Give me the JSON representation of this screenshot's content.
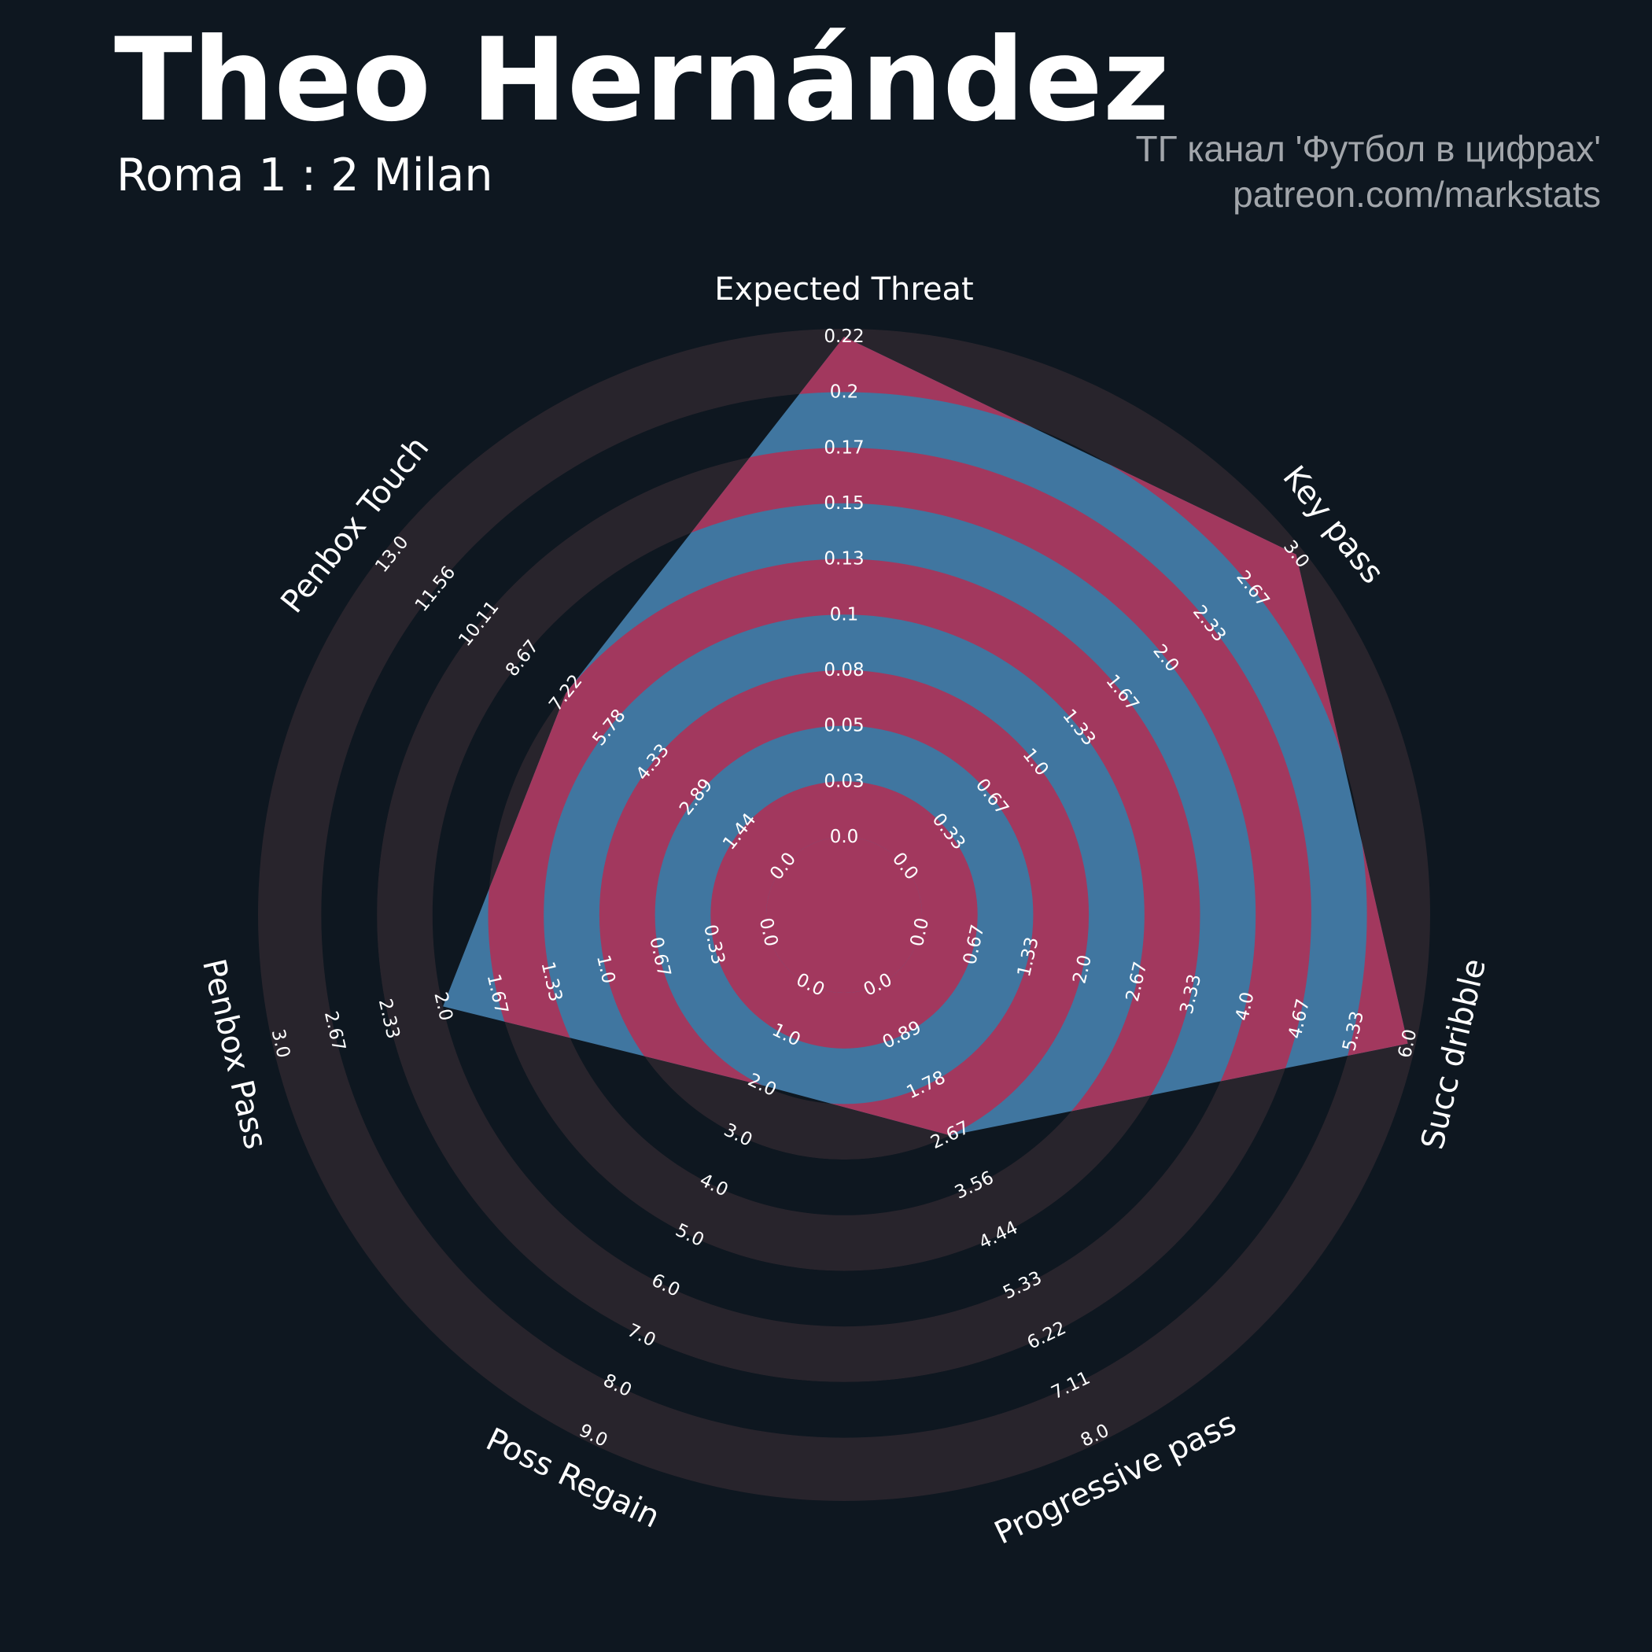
{
  "header": {
    "title": "Theo Hernández",
    "subtitle": "Roma 1 : 2 Milan",
    "credit_line1": "ТГ канал 'Футбол в цифрах'",
    "credit_line2": "patreon.com/markstats"
  },
  "colors": {
    "background": "#0e1720",
    "ring_dark": "#28242c",
    "ring_light": "#0e1720",
    "player_fill": "#4076a0",
    "player_ring": "#a2385e",
    "text": "#ffffff",
    "credit": "#a2a6ab"
  },
  "chart_data": {
    "type": "radar",
    "title": "Theo Hernández",
    "subtitle": "Roma 1 : 2 Milan",
    "params": [
      {
        "label": "Expected Threat",
        "min": 0.0,
        "max": 0.22,
        "value": 0.22,
        "ticks": [
          "0.0",
          "0.03",
          "0.05",
          "0.08",
          "0.1",
          "0.13",
          "0.15",
          "0.17",
          "0.2",
          "0.22"
        ]
      },
      {
        "label": "Key pass",
        "min": 0.0,
        "max": 3.0,
        "value": 3.0,
        "ticks": [
          "0.0",
          "0.33",
          "0.67",
          "1.0",
          "1.33",
          "1.67",
          "2.0",
          "2.33",
          "2.67",
          "3.0"
        ]
      },
      {
        "label": "Succ dribble",
        "min": 0.0,
        "max": 6.0,
        "value": 6.0,
        "ticks": [
          "0.0",
          "0.67",
          "1.33",
          "2.0",
          "2.67",
          "3.33",
          "4.0",
          "4.67",
          "5.33",
          "6.0"
        ]
      },
      {
        "label": "Progressive pass",
        "min": 0.0,
        "max": 8.0,
        "value": 2.67,
        "ticks": [
          "0.0",
          "0.89",
          "1.78",
          "2.67",
          "3.56",
          "4.44",
          "5.33",
          "6.22",
          "7.11",
          "8.0"
        ]
      },
      {
        "label": "Poss Regain",
        "min": 0.0,
        "max": 9.0,
        "value": 2.0,
        "ticks": [
          "0.0",
          "1.0",
          "2.0",
          "3.0",
          "4.0",
          "5.0",
          "6.0",
          "7.0",
          "8.0",
          "9.0"
        ]
      },
      {
        "label": "Penbox Pass",
        "min": 0.0,
        "max": 3.0,
        "value": 2.0,
        "ticks": [
          "0.0",
          "0.33",
          "0.67",
          "1.0",
          "1.33",
          "1.67",
          "2.0",
          "2.33",
          "2.67",
          "3.0"
        ]
      },
      {
        "label": "Penbox Touch",
        "min": 0.0,
        "max": 13.0,
        "value": 7.22,
        "ticks": [
          "0.0",
          "1.44",
          "2.89",
          "4.33",
          "5.78",
          "7.22",
          "8.67",
          "10.11",
          "11.56",
          "13.0"
        ]
      }
    ]
  }
}
